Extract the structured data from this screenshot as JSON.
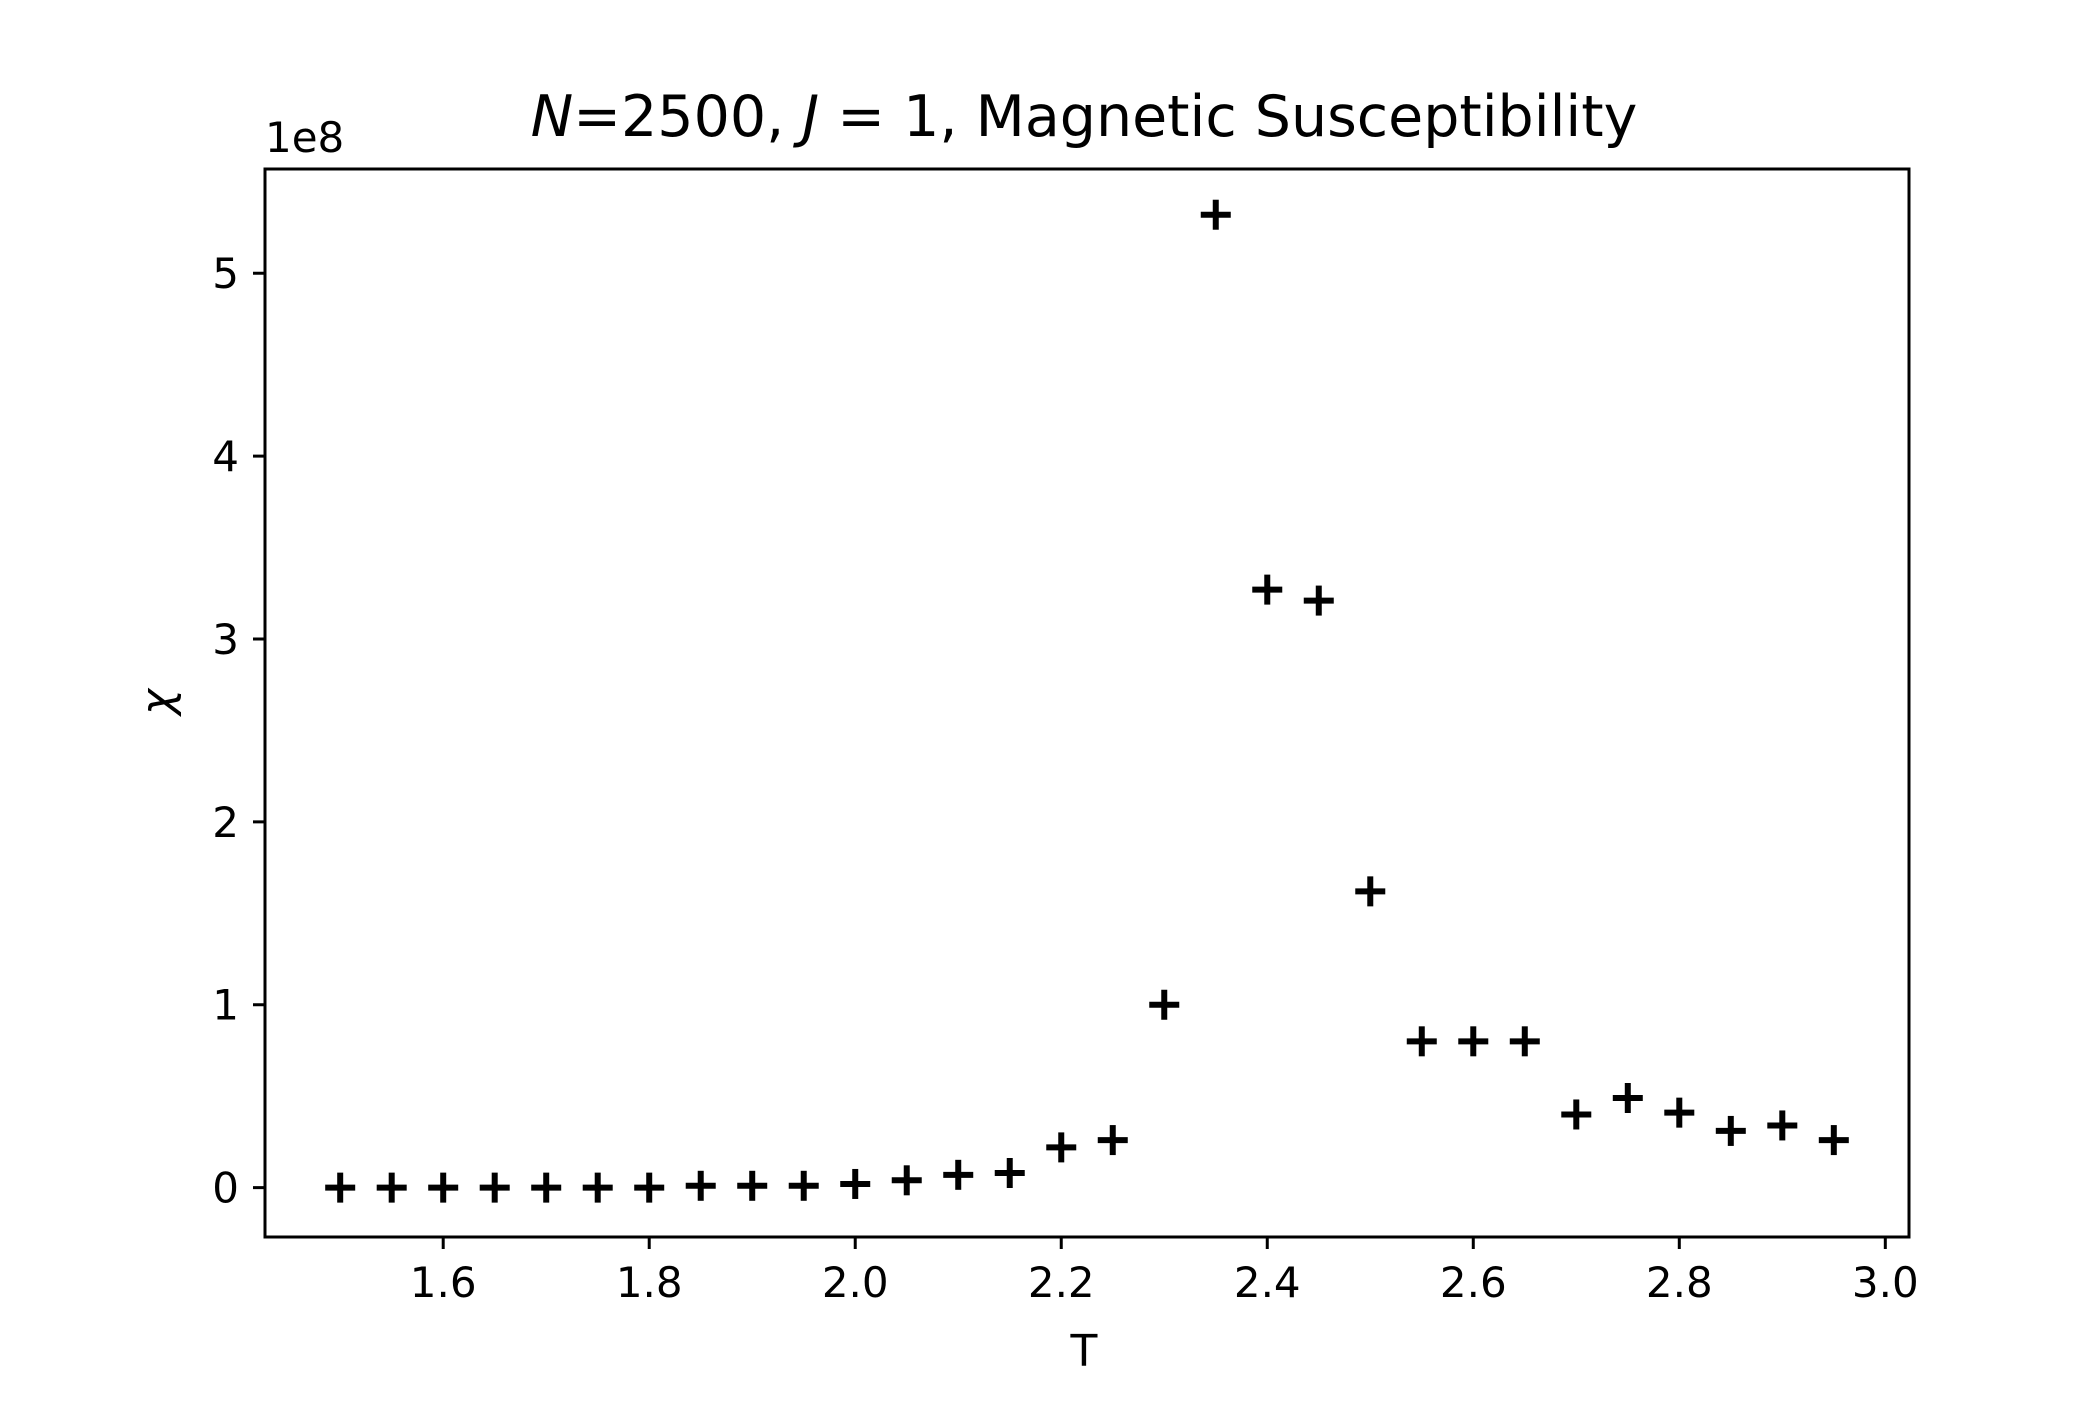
{
  "chart_data": {
    "type": "scatter",
    "title": {
      "N_symbol": "N",
      "N_value": "=2500, ",
      "J_symbol": "J",
      "J_value": " = 1, Magnetic Susceptibility"
    },
    "xlabel": "T",
    "ylabel": "χ",
    "y_offset_label": "1e8",
    "y_scale_multiplier": 100000000,
    "xlim": [
      1.427,
      3.023
    ],
    "ylim": [
      -0.27,
      5.57
    ],
    "xticks": [
      1.6,
      1.8,
      2.0,
      2.2,
      2.4,
      2.6,
      2.8,
      3.0
    ],
    "xtick_labels": [
      "1.6",
      "1.8",
      "2.0",
      "2.2",
      "2.4",
      "2.6",
      "2.8",
      "3.0"
    ],
    "yticks": [
      0,
      1,
      2,
      3,
      4,
      5
    ],
    "ytick_labels": [
      "0",
      "1",
      "2",
      "3",
      "4",
      "5"
    ],
    "marker": "+",
    "marker_color": "#000000",
    "grid": false,
    "series": [
      {
        "x": [
          1.5,
          1.55,
          1.6,
          1.65,
          1.7,
          1.75,
          1.8,
          1.85,
          1.9,
          1.95,
          2.0,
          2.05,
          2.1,
          2.15,
          2.2,
          2.25,
          2.3,
          2.35,
          2.4,
          2.45,
          2.5,
          2.55,
          2.6,
          2.65,
          2.7,
          2.75,
          2.8,
          2.85,
          2.9,
          2.95
        ],
        "y": [
          0.0,
          0.0,
          0.0,
          0.0,
          0.0,
          0.0,
          0.0,
          0.01,
          0.01,
          0.01,
          0.02,
          0.04,
          0.07,
          0.08,
          0.22,
          0.26,
          1.0,
          5.32,
          3.27,
          3.21,
          1.62,
          0.8,
          0.8,
          0.8,
          0.4,
          0.49,
          0.41,
          0.31,
          0.34,
          0.26
        ]
      }
    ]
  }
}
